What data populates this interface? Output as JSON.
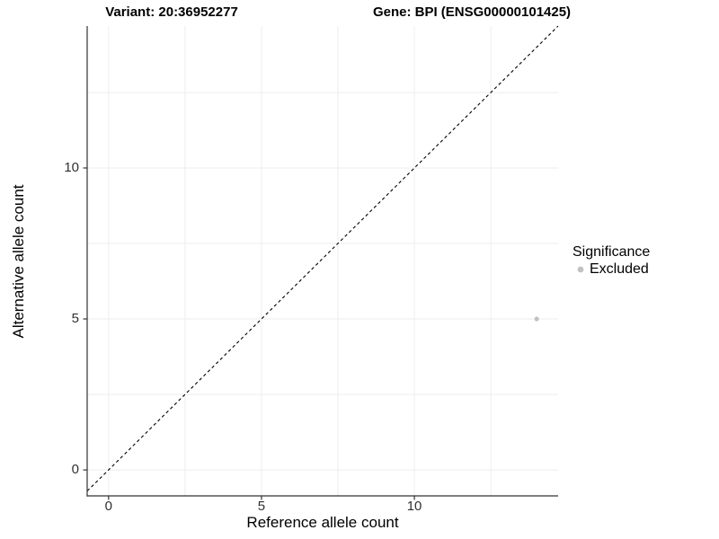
{
  "chart_data": {
    "type": "scatter",
    "titles": {
      "left": "Variant: 20:36952277",
      "right": "Gene: BPI (ENSG00000101425)"
    },
    "xlabel": "Reference allele count",
    "ylabel": "Alternative allele count",
    "xlim": [
      -0.7,
      14.7
    ],
    "ylim": [
      -0.86,
      14.7
    ],
    "xticks": [
      0,
      5,
      10
    ],
    "yticks": [
      0,
      5,
      10
    ],
    "grid_x": [
      0,
      2.5,
      5,
      7.5,
      10,
      12.5
    ],
    "grid_y": [
      0,
      2.5,
      5,
      7.5,
      10,
      12.5
    ],
    "grid_on": true,
    "identity_line": {
      "style": "dashed",
      "from": [
        -0.7,
        -0.7
      ],
      "to": [
        14.7,
        14.7
      ],
      "color": "#000000"
    },
    "series": [
      {
        "name": "Excluded",
        "color": "#c2c2c2",
        "points": [
          {
            "x": 14,
            "y": 5
          }
        ]
      }
    ],
    "legend": {
      "title": "Significance",
      "position": "right",
      "items": [
        {
          "label": "Excluded",
          "color": "#c2c2c2"
        }
      ]
    },
    "colors": {
      "grid": "#eeeeee",
      "axis": "#333333",
      "tick_label": "#303030"
    }
  }
}
